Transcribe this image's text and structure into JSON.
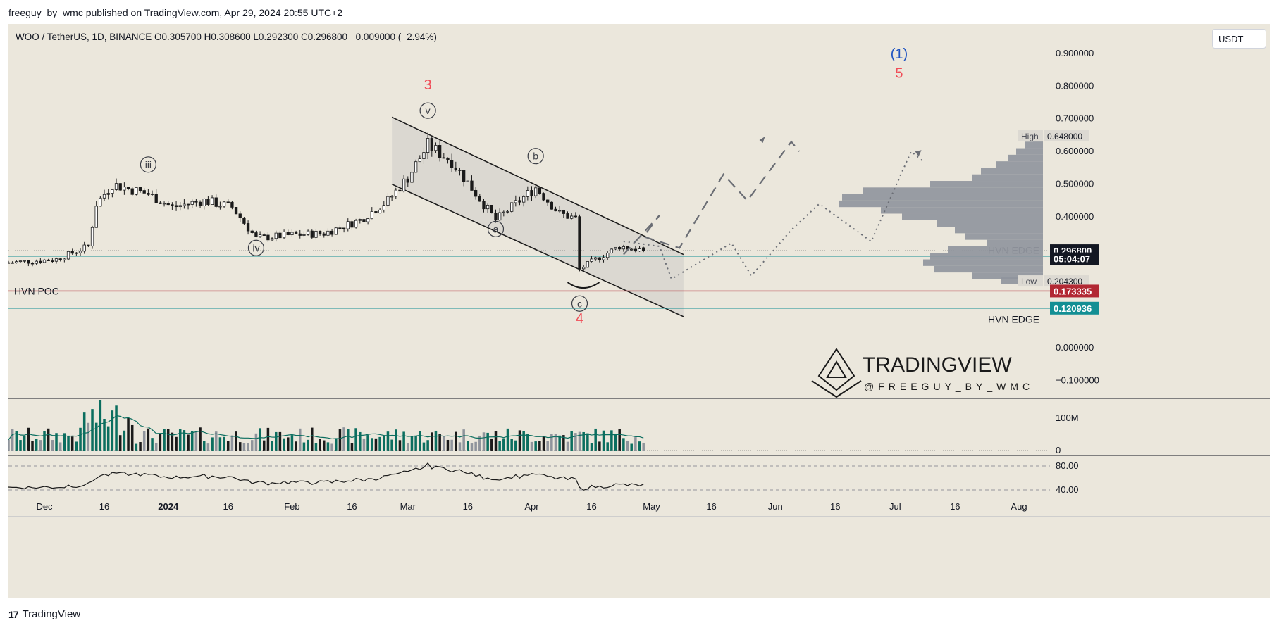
{
  "header": {
    "published": "freeguy_by_wmc published on TradingView.com, Apr 29, 2024 20:55 UTC+2"
  },
  "legend": {
    "text": "WOO / TetherUS, 1D, BINANCE  O0.305700  H0.308600  L0.292300  C0.296800  −0.009000 (−2.94%)"
  },
  "currency_button": "USDT",
  "footer": {
    "brand": "TradingView",
    "logo": "17"
  },
  "colors": {
    "background": "#ebe7dc",
    "up": "#0b6e5f",
    "down": "#1a1a1a",
    "poc": "#b22833",
    "hvn": "#138f94",
    "wave_red": "#f04c57",
    "wave_blue": "#1f54c2"
  },
  "chart_data": {
    "type": "candlestick",
    "symbol": "WOO / TetherUS",
    "interval": "1D",
    "exchange": "BINANCE",
    "ohlc_last": {
      "open": 0.3057,
      "high": 0.3086,
      "low": 0.2923,
      "close": 0.2968,
      "change": -0.009,
      "change_pct": -2.94
    },
    "y_ticks": [
      "0.900000",
      "0.800000",
      "0.700000",
      "0.600000",
      "0.500000",
      "0.400000",
      "0.000000",
      "−0.100000"
    ],
    "y_ticks_values": [
      0.9,
      0.8,
      0.7,
      0.6,
      0.5,
      0.4,
      0.0,
      -0.1
    ],
    "ylim": [
      -0.155,
      0.99
    ],
    "x_ticks": [
      "Dec",
      "16",
      "2024",
      "16",
      "Feb",
      "16",
      "Mar",
      "16",
      "Apr",
      "16",
      "May",
      "16",
      "Jun",
      "16",
      "Jul",
      "16",
      "Aug"
    ],
    "x_range": [
      "2023-11-22",
      "2024-08-07"
    ],
    "price_badges": [
      {
        "label": "0.296800",
        "value": 0.2968,
        "color": "#131722"
      },
      {
        "label": "05:04:07",
        "value": 0.272,
        "color": "#131722"
      },
      {
        "label": "0.173335",
        "value": 0.173335,
        "color": "#b22833"
      },
      {
        "label": "0.120936",
        "value": 0.120936,
        "color": "#138f94"
      }
    ],
    "profile_labels": [
      {
        "text": "High",
        "value": "0.648000",
        "price": 0.648
      },
      {
        "text": "Low",
        "value": "0.204300",
        "price": 0.2043
      }
    ],
    "levels": [
      {
        "name": "HVN POC",
        "value": 0.173335,
        "color": "#b22833"
      },
      {
        "name": "HVN EDGE",
        "value": 0.28,
        "color": "#138f94"
      },
      {
        "name": "HVN EDGE",
        "value": 0.120936,
        "color": "#138f94"
      }
    ],
    "waves": [
      {
        "label": "iii",
        "date": "2023-12-27",
        "price": 0.56
      },
      {
        "label": "iv",
        "date": "2024-01-23",
        "price": 0.305
      },
      {
        "label": "v",
        "date": "2024-03-06",
        "price": 0.725
      },
      {
        "label": "a",
        "date": "2024-03-23",
        "price": 0.363
      },
      {
        "label": "b",
        "date": "2024-04-02",
        "price": 0.586
      },
      {
        "label": "c",
        "date": "2024-04-13",
        "price": 0.135
      }
    ],
    "wave_numbers": [
      {
        "label": "3",
        "date": "2024-03-06",
        "price": 0.79,
        "color": "#f04c57"
      },
      {
        "label": "4",
        "date": "2024-04-13",
        "price": 0.075,
        "color": "#f04c57"
      },
      {
        "label": "(1)",
        "date": "2024-07-02",
        "price": 0.885,
        "color": "#1f54c2"
      },
      {
        "label": "5",
        "date": "2024-07-02",
        "price": 0.825,
        "color": "#f04c57"
      }
    ],
    "volume_ticks": [
      "100M",
      "0"
    ],
    "rsi_ticks": [
      "80.00",
      "40.00"
    ],
    "watermark": {
      "title": "TRADINGVIEW",
      "handle": "@FREEGUY_BY_WMC"
    }
  }
}
